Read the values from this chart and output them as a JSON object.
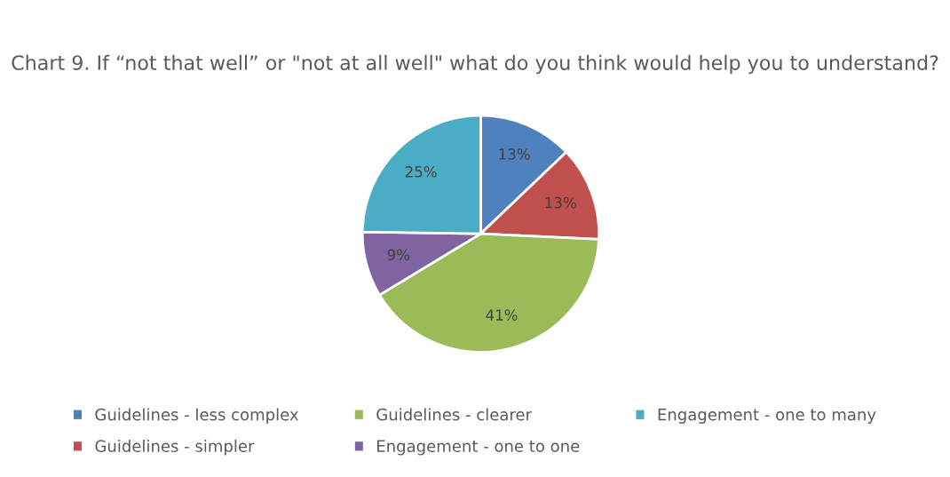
{
  "chart_data": {
    "type": "pie",
    "title": "Chart 9. If “not that well” or \"not at all well\" what do you think would help you to understand?",
    "categories": [
      "Guidelines - less complex",
      "Guidelines - simpler",
      "Guidelines - clearer",
      "Engagement - one to one",
      "Engagement - one to many"
    ],
    "values": [
      13,
      13,
      41,
      9,
      25
    ],
    "colors": [
      "#4f81bd",
      "#c0504d",
      "#9bbb59",
      "#8064a2",
      "#4bacc6"
    ],
    "value_labels": [
      "13%",
      "13%",
      "41%",
      "9%",
      "25%"
    ],
    "legend": "bottom"
  }
}
